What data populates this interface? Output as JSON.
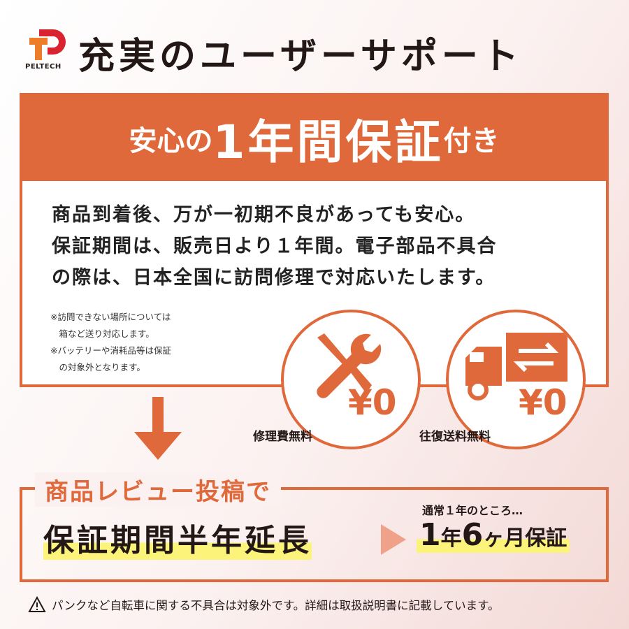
{
  "brand": {
    "logo_text": "PELTECH"
  },
  "header": {
    "title": "充実のユーザーサポート"
  },
  "warranty": {
    "band_pre": "安心の",
    "band_main": "1年間保証",
    "band_post": "付き",
    "lines": [
      "商品到着後、万が一初期不良があっても安心。",
      "保証期間は、販売日より１年間。電子部品不具合",
      "の際は、日本全国に訪問修理で対応いたします。"
    ],
    "notes": [
      "※訪問できない場所については",
      "　箱など送り対応します。",
      "※バッテリーや消耗品等は保証",
      "　の対象外となります。"
    ],
    "features": [
      {
        "icon": "wrench-screwdriver-icon",
        "price": "¥0",
        "label": "修理費無料"
      },
      {
        "icon": "truck-exchange-icon",
        "price": "¥0",
        "label": "往復送料無料"
      }
    ]
  },
  "review": {
    "heading": "商品レビュー投稿で",
    "extension": "保証期間半年延長",
    "usual": "通常１年のところ…",
    "result_1": "1",
    "result_2": "年",
    "result_3": "6",
    "result_4": "ヶ月保証"
  },
  "footer": {
    "icon": "warning-icon",
    "text": "パンクなど自転車に関する不具合は対象外です。詳細は取扱説明書に記載しています。"
  },
  "colors": {
    "accent": "#e0693b",
    "highlight": "#fbf37a",
    "logo_red": "#d9232f",
    "logo_orange": "#ee7d2a"
  }
}
